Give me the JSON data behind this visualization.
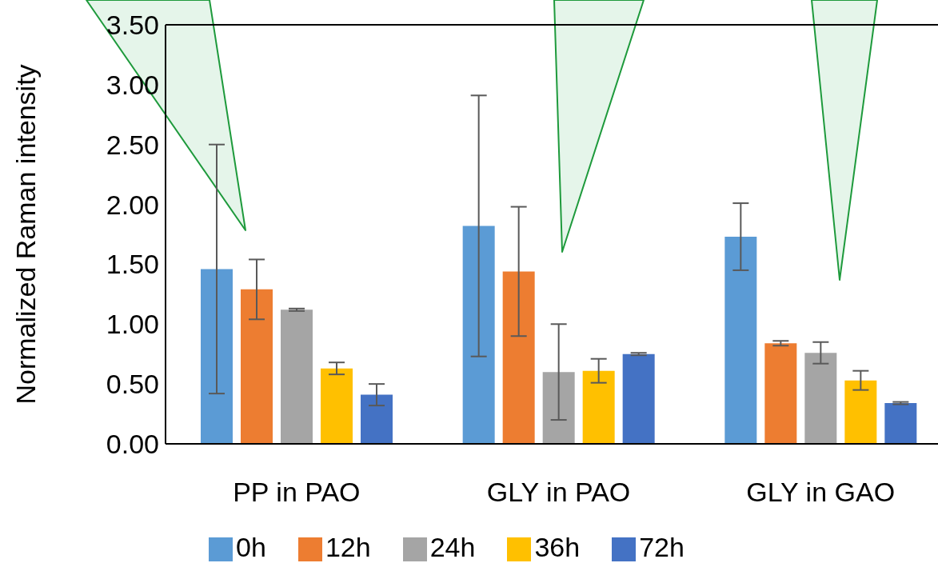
{
  "chart_data": {
    "type": "bar",
    "ylabel": "Normalized Raman intensity",
    "categories": [
      "PP in PAO",
      "GLY in PAO",
      "GLY in GAO"
    ],
    "series": [
      {
        "name": "0h",
        "color": "#5b9bd5",
        "values": [
          1.46,
          1.82,
          1.73
        ],
        "errors": [
          1.04,
          1.09,
          0.28
        ]
      },
      {
        "name": "12h",
        "color": "#ed7d31",
        "values": [
          1.29,
          1.44,
          0.84
        ],
        "errors": [
          0.25,
          0.54,
          0.02
        ]
      },
      {
        "name": "24h",
        "color": "#a5a5a5",
        "values": [
          1.12,
          0.6,
          0.76
        ],
        "errors": [
          0.01,
          0.4,
          0.09
        ]
      },
      {
        "name": "36h",
        "color": "#ffc000",
        "values": [
          0.63,
          0.61,
          0.53
        ],
        "errors": [
          0.05,
          0.1,
          0.08
        ]
      },
      {
        "name": "72h",
        "color": "#4472c4",
        "values": [
          0.41,
          0.75,
          0.34
        ],
        "errors": [
          0.09,
          0.01,
          0.01
        ]
      }
    ],
    "ylim": [
      0,
      3.5
    ],
    "yticks": [
      {
        "value": 0,
        "label": "0.00"
      },
      {
        "value": 0.5,
        "label": "0.50"
      },
      {
        "value": 1,
        "label": "1.00"
      },
      {
        "value": 1.5,
        "label": "1.50"
      },
      {
        "value": 2,
        "label": "2.00"
      },
      {
        "value": 2.5,
        "label": "2.50"
      },
      {
        "value": 3,
        "label": "3.00"
      },
      {
        "value": 3.5,
        "label": "3.50"
      }
    ],
    "grid": false,
    "legend": "bottom"
  }
}
